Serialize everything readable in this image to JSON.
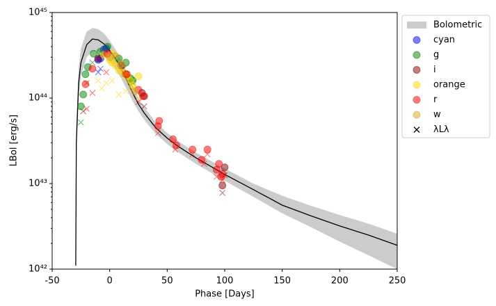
{
  "chart_data": {
    "type": "scatter",
    "log_y": true,
    "xlabel": "Phase [Days]",
    "ylabel": "LBol [erg/s]",
    "xlim": [
      -50,
      250
    ],
    "xticks": [
      -50,
      0,
      50,
      100,
      150,
      200,
      250
    ],
    "ylim": [
      1e+42,
      1e+45
    ],
    "yticks": [
      {
        "value": 1e+42,
        "label": "10⁴²"
      },
      {
        "value": 1e+43,
        "label": "10⁴³"
      },
      {
        "value": 1e+44,
        "label": "10⁴⁴"
      },
      {
        "value": 1e+45,
        "label": "10⁴⁵"
      }
    ],
    "legend": "upper right outside",
    "band": {
      "name": "Bolometric",
      "color": "#cccccc",
      "x": [
        -29.5,
        -29,
        -27,
        -25,
        -20,
        -15,
        -10,
        -5,
        0,
        5,
        10,
        15,
        20,
        25,
        30,
        40,
        50,
        60,
        75,
        100,
        125,
        150,
        175,
        200,
        225,
        250
      ],
      "lower": [
        1e+42,
        2e+43,
        1e+44,
        1.8e+44,
        3e+44,
        3.5e+44,
        3.5e+44,
        3.1e+44,
        2.7e+44,
        2.2e+44,
        1.7e+44,
        1.25e+44,
        9.2e+43,
        7e+43,
        5.6e+43,
        3.8e+43,
        2.9e+43,
        2.3e+43,
        1.7e+43,
        1.08e+43,
        7e+42,
        4.5e+42,
        3.1e+42,
        2.1e+42,
        1.45e+42,
        1e+42
      ],
      "upper": [
        1.2e+42,
        5e+43,
        2.2e+44,
        3.8e+44,
        6e+44,
        6.6e+44,
        6.4e+44,
        5.7e+44,
        4.7e+44,
        3.7e+44,
        2.8e+44,
        2e+44,
        1.4e+44,
        1e+44,
        7.8e+43,
        5.2e+43,
        3.9e+43,
        3.1e+43,
        2.3e+43,
        1.5e+43,
        1e+43,
        7.2e+42,
        5.5e+42,
        4.3e+42,
        3.4e+42,
        2.6e+42
      ]
    },
    "line": {
      "color": "#000000",
      "x": [
        -29.5,
        -29,
        -27,
        -25,
        -20,
        -15,
        -10,
        -5,
        0,
        5,
        10,
        15,
        20,
        25,
        30,
        40,
        50,
        60,
        75,
        100,
        125,
        150,
        175,
        200,
        225,
        250
      ],
      "values": [
        1.1e+42,
        3e+43,
        1.5e+44,
        2.6e+44,
        4.2e+44,
        4.9e+44,
        4.8e+44,
        4.3e+44,
        3.6e+44,
        2.9e+44,
        2.2e+44,
        1.6e+44,
        1.15e+44,
        8.5e+43,
        6.7e+43,
        4.5e+43,
        3.4e+43,
        2.7e+43,
        2e+43,
        1.28e+43,
        8.5e+42,
        5.6e+42,
        4.2e+42,
        3.2e+42,
        2.5e+42,
        1.9e+42
      ]
    },
    "cross_legend": "λLλ",
    "series": [
      {
        "name": "cyan",
        "color": "#0000ff",
        "x": [
          -10,
          -8,
          -5,
          -3
        ],
        "values": [
          2.8e+44,
          2.9e+44,
          3.7e+44,
          3.8e+44
        ],
        "lambda_x": [
          -10,
          -8
        ],
        "lambda_values": [
          2e+44,
          2.2e+44
        ]
      },
      {
        "name": "g",
        "color": "#008000",
        "x": [
          -25,
          -23,
          -21,
          -19,
          -14,
          -8,
          -2,
          8,
          14,
          18,
          20
        ],
        "values": [
          8e+43,
          1.1e+44,
          1.9e+44,
          2.3e+44,
          3.3e+44,
          3.5e+44,
          4e+44,
          2.9e+44,
          2.6e+44,
          1.7e+44,
          1.6e+44
        ],
        "lambda_x": [
          -25,
          -20,
          -15,
          -5,
          10,
          20
        ],
        "lambda_values": [
          5.2e+43,
          1.5e+44,
          2.6e+44,
          3.2e+44,
          2.4e+44,
          1.5e+44
        ]
      },
      {
        "name": "i",
        "color": "#800000",
        "x": [
          -10,
          10,
          14,
          28,
          30,
          98,
          100
        ],
        "values": [
          2.9e+44,
          2.4e+44,
          1.9e+44,
          1.15e+44,
          1.05e+44,
          9.5e+42,
          1.55e+43
        ],
        "lambda_x": [
          -23,
          12,
          30,
          98,
          100
        ],
        "lambda_values": [
          7e+43,
          2.2e+44,
          8e+43,
          7.8e+42,
          1.25e+43
        ]
      },
      {
        "name": "orange",
        "color": "#ffd700",
        "x": [
          -5,
          0,
          2,
          3,
          5,
          8,
          12,
          15,
          18,
          20,
          25
        ],
        "values": [
          3.2e+44,
          2.8e+44,
          2.6e+44,
          3.3e+44,
          2.4e+44,
          2.1e+44,
          2e+44,
          1.8e+44,
          1.6e+44,
          1.4e+44,
          1.8e+44
        ],
        "lambda_x": [
          -10,
          -7,
          -3,
          2,
          8,
          14,
          20,
          25
        ],
        "lambda_values": [
          1.6e+44,
          1.3e+44,
          1.5e+44,
          1.6e+44,
          1.1e+44,
          1.2e+44,
          1.3e+44,
          1e+44
        ]
      },
      {
        "name": "r",
        "color": "#ff0000",
        "x": [
          -21,
          -15,
          -2,
          15,
          25,
          29,
          42,
          43,
          55,
          58,
          72,
          80,
          85,
          93,
          95,
          97,
          98
        ],
        "values": [
          1.45e+44,
          2.2e+44,
          3.3e+44,
          1.9e+44,
          1.25e+44,
          1.05e+44,
          4.7e+43,
          5.4e+43,
          3.3e+43,
          2.8e+43,
          2.5e+43,
          1.9e+43,
          2.5e+43,
          1.45e+43,
          1.7e+43,
          1.2e+43,
          1.3e+43
        ],
        "lambda_x": [
          -20,
          -15,
          -3,
          25,
          42,
          57,
          72,
          82,
          85,
          93,
          98
        ],
        "lambda_values": [
          7.5e+43,
          1.15e+44,
          2e+44,
          9e+43,
          3.9e+43,
          2.5e+43,
          2.2e+43,
          1.7e+43,
          2.2e+43,
          1.2e+43,
          1.1e+43
        ]
      },
      {
        "name": "w",
        "color": "#daa520",
        "x": [
          0,
          5,
          10,
          22
        ],
        "values": [
          3e+44,
          3.1e+44,
          2.5e+44,
          1.2e+44
        ],
        "lambda_x": [
          5,
          12
        ],
        "lambda_values": [
          2.7e+44,
          1.9e+44
        ]
      }
    ]
  }
}
